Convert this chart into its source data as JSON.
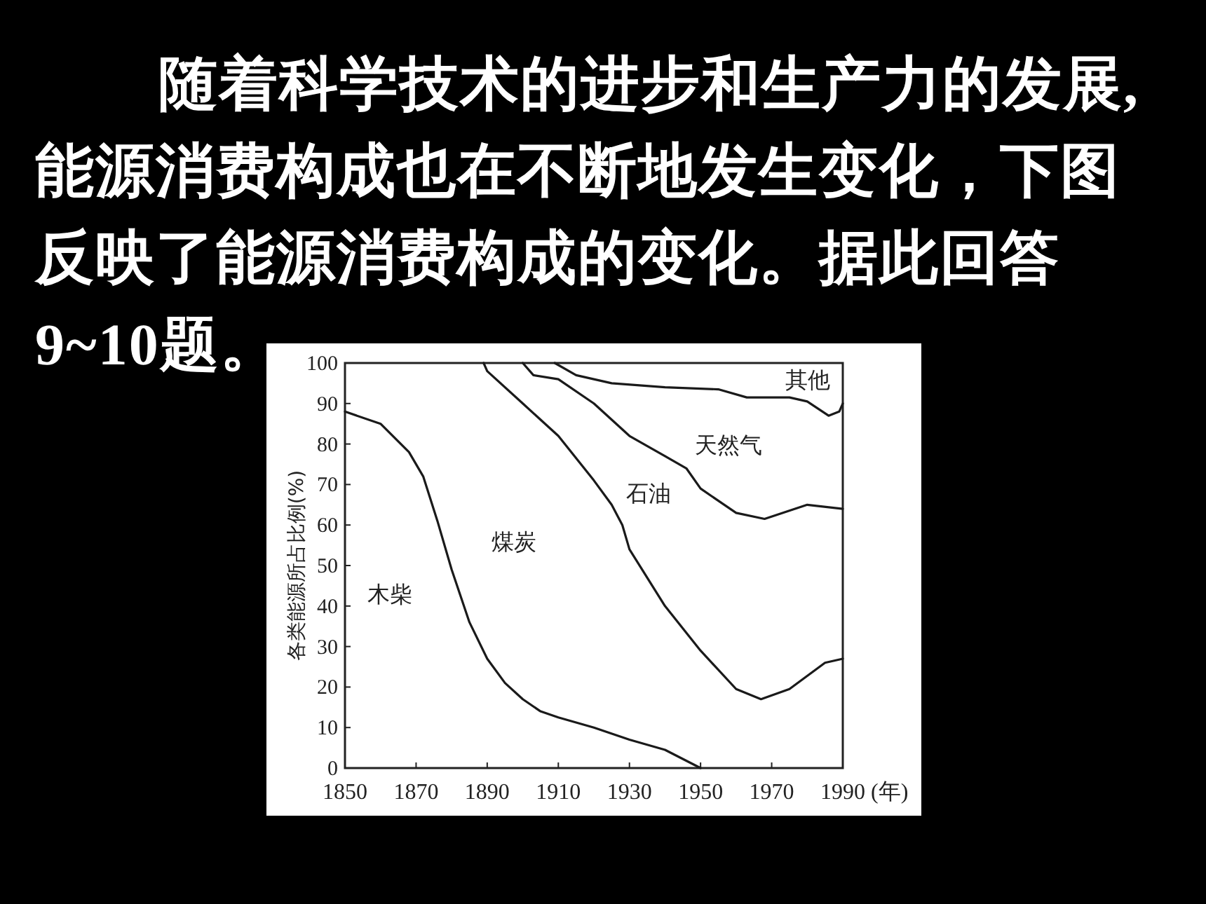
{
  "chart_data": {
    "type": "line",
    "title": "随着科学技术的进步和生产力的发展,能源消费构成也在不断地发生变化，下图反映了能源消费构成的变化。据此回答9~10题。",
    "ylabel": "各类能源所占比例(%)",
    "xlabel": "(年)",
    "xlim": [
      1850,
      1990
    ],
    "ylim": [
      0,
      100
    ],
    "xticks": [
      1850,
      1870,
      1890,
      1910,
      1930,
      1950,
      1970,
      1990
    ],
    "yticks": [
      0,
      10,
      20,
      30,
      40,
      50,
      60,
      70,
      80,
      90,
      100
    ],
    "grid": false,
    "marker": "none",
    "line_style": "solid",
    "series": [
      {
        "color": "#1a1a1a",
        "x": [
          1850,
          1860,
          1868,
          1872,
          1876,
          1880,
          1885,
          1890,
          1895,
          1900,
          1905,
          1910,
          1920,
          1930,
          1940,
          1950
        ],
        "values": [
          88,
          85,
          78,
          72,
          61,
          49,
          36,
          27,
          21,
          17,
          14,
          12.5,
          10,
          7,
          4.5,
          0
        ]
      },
      {
        "color": "#1a1a1a",
        "x": [
          1889,
          1890,
          1900,
          1910,
          1920,
          1925,
          1928,
          1930,
          1940,
          1950,
          1960,
          1967,
          1975,
          1985,
          1990
        ],
        "values": [
          100,
          98,
          90,
          82,
          71,
          65,
          60,
          54,
          40,
          29,
          19.5,
          17,
          19.5,
          26,
          27
        ]
      },
      {
        "color": "#1a1a1a",
        "x": [
          1900,
          1903,
          1910,
          1920,
          1930,
          1940,
          1946,
          1950,
          1960,
          1968,
          1980,
          1990
        ],
        "values": [
          100,
          97,
          96,
          90,
          82,
          77,
          74,
          69,
          63,
          61.5,
          65,
          64
        ]
      },
      {
        "color": "#1a1a1a",
        "x": [
          1909,
          1915,
          1925,
          1940,
          1955,
          1963,
          1975,
          1980,
          1986,
          1989,
          1990
        ],
        "values": [
          100,
          97,
          95,
          94,
          93.5,
          91.5,
          91.5,
          90.5,
          87,
          88,
          90
        ]
      }
    ],
    "annotations": [
      "木柴",
      "煤炭",
      "石油",
      "天然气",
      "其他"
    ]
  }
}
